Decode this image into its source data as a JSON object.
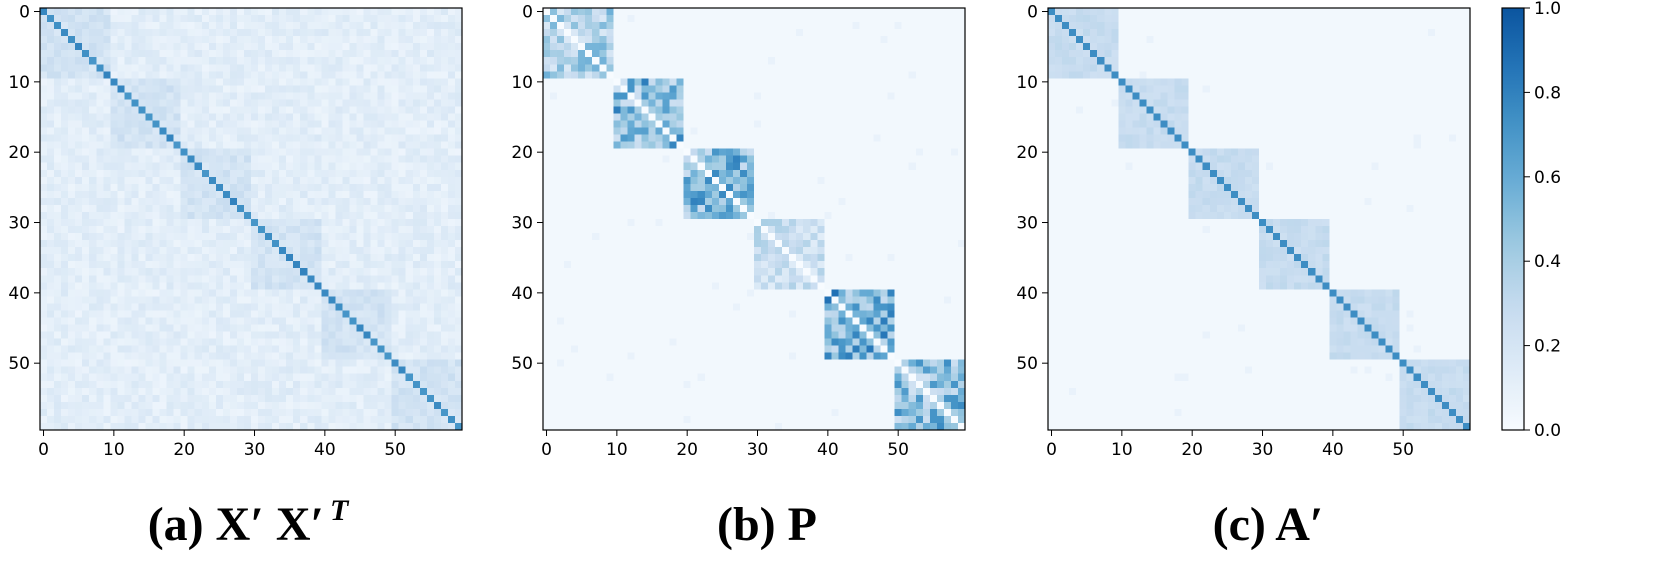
{
  "chart_data": [
    {
      "type": "heatmap",
      "caption": {
        "label": "(a)",
        "symbol": "X′ X′",
        "superscript": "T"
      },
      "size": 60,
      "pattern": "gram",
      "x_ticks": [
        "0",
        "10",
        "20",
        "30",
        "40",
        "50"
      ],
      "y_ticks": [
        "0",
        "10",
        "20",
        "30",
        "40",
        "50"
      ],
      "block_size": 10,
      "diagonal_value": 0.7,
      "in_block_value": 0.22,
      "off_block_value": 0.12
    },
    {
      "type": "heatmap",
      "caption": {
        "label": "(b)",
        "symbol": "P",
        "superscript": ""
      },
      "size": 60,
      "pattern": "block",
      "x_ticks": [
        "0",
        "10",
        "20",
        "30",
        "40",
        "50"
      ],
      "y_ticks": [
        "0",
        "10",
        "20",
        "30",
        "40",
        "50"
      ],
      "block_size": 10,
      "block_peak_values": [
        0.55,
        0.78,
        0.8,
        0.38,
        0.85,
        0.72
      ],
      "diagonal_value": 0.0,
      "off_block_value": 0.03
    },
    {
      "type": "heatmap",
      "caption": {
        "label": "(c)",
        "symbol": "A′",
        "superscript": ""
      },
      "size": 60,
      "pattern": "affinity",
      "x_ticks": [
        "0",
        "10",
        "20",
        "30",
        "40",
        "50"
      ],
      "y_ticks": [
        "0",
        "10",
        "20",
        "30",
        "40",
        "50"
      ],
      "block_size": 10,
      "diagonal_value": 0.75,
      "in_block_value": 0.28,
      "off_block_value": 0.03
    }
  ],
  "colorbar": {
    "colormap": "Blues",
    "color_low": "#f7fbff",
    "color_high": "#08519c",
    "range": [
      0.0,
      1.0
    ],
    "tick_values": [
      0.0,
      0.2,
      0.4,
      0.6,
      0.8,
      1.0
    ],
    "tick_labels": [
      "0.0",
      "0.2",
      "0.4",
      "0.6",
      "0.8",
      "1.0"
    ]
  }
}
